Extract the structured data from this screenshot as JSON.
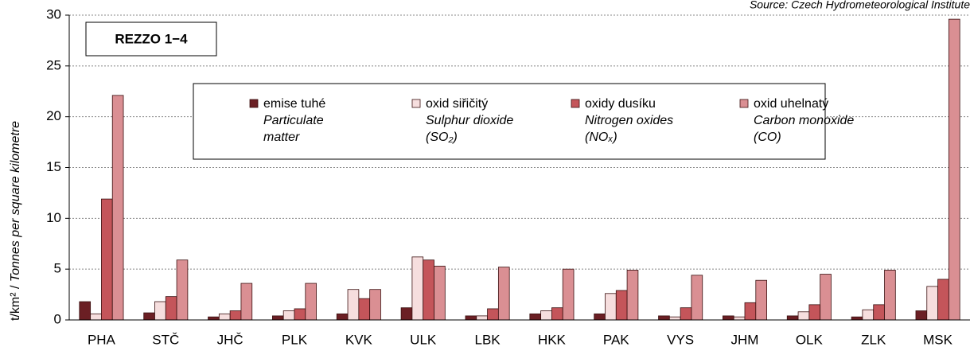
{
  "chart_data": {
    "type": "bar",
    "title": "REZZO 1−4",
    "source": "Source: Czech Hydrometeorological Institute",
    "y_label_unit": "t/km² /",
    "y_label": "Tonnes per square kilometre",
    "categories": [
      "PHA",
      "STČ",
      "JHČ",
      "PLK",
      "KVK",
      "ULK",
      "LBK",
      "HKK",
      "PAK",
      "VYS",
      "JHM",
      "OLK",
      "ZLK",
      "MSK"
    ],
    "series": [
      {
        "name": "emise tuhé",
        "english_lines": [
          "Particulate",
          "matter"
        ],
        "color": "#6b1f24",
        "values": [
          1.8,
          0.7,
          0.3,
          0.4,
          0.6,
          1.2,
          0.4,
          0.6,
          0.6,
          0.4,
          0.4,
          0.4,
          0.3,
          0.9
        ]
      },
      {
        "name": "oxid siřičitý",
        "english_lines": [
          "Sulphur dioxide",
          "(SO₂)"
        ],
        "color": "#f6dede",
        "values": [
          0.6,
          1.8,
          0.6,
          0.9,
          3.0,
          6.2,
          0.4,
          0.9,
          2.6,
          0.3,
          0.3,
          0.8,
          1.0,
          3.3
        ]
      },
      {
        "name": "oxidy dusíku",
        "english_lines": [
          "Nitrogen oxides",
          "(NOₓ)"
        ],
        "color": "#c4555a",
        "values": [
          11.9,
          2.3,
          0.9,
          1.1,
          2.1,
          5.9,
          1.1,
          1.2,
          2.9,
          1.2,
          1.7,
          1.5,
          1.5,
          4.0
        ]
      },
      {
        "name": "oxid uhelnatý",
        "english_lines": [
          "Carbon monoxide",
          "(CO)"
        ],
        "color": "#da8f93",
        "values": [
          22.1,
          5.9,
          3.6,
          3.6,
          3.0,
          5.3,
          5.2,
          5.0,
          4.9,
          4.4,
          3.9,
          4.5,
          4.9,
          29.6
        ]
      }
    ],
    "ylim": [
      0,
      30
    ],
    "yticks": [
      0,
      5,
      10,
      15,
      20,
      25,
      30
    ],
    "grid": true
  }
}
